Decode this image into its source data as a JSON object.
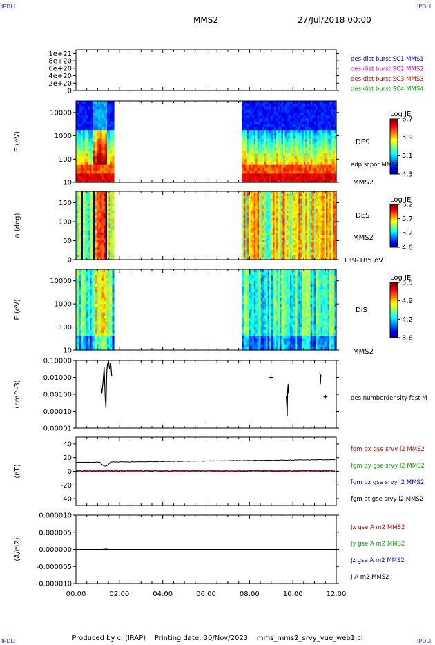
{
  "corner_label": "IPDLI",
  "header": {
    "spacecraft": "MMS2",
    "datetime": "27/Jul/2018 00:00"
  },
  "footer": {
    "produced_by": "Produced by cl (IRAP)",
    "printing_date": "Printing date: 30/Nov/2023",
    "filename": "mms_mms2_srvy_vue_web1.cl"
  },
  "time_axis": {
    "ticks": [
      "00:00",
      "02:00",
      "04:00",
      "06:00",
      "08:00",
      "10:00",
      "12:00"
    ],
    "range_hours": [
      0,
      12
    ]
  },
  "colors": {
    "blue": "#0000cc",
    "magenta": "#cc00cc",
    "red": "#cc0000",
    "green": "#00aa00",
    "black": "#000000"
  },
  "chart_data": [
    {
      "type": "line",
      "ylabel": "",
      "yticks": [
        "0",
        "2e+20",
        "4e+20",
        "6e+20",
        "8e+20",
        "1e+21"
      ],
      "ylim": [
        0,
        1.1e+21
      ],
      "series": [
        {
          "name": "des dist burst SC1 MMS1",
          "color": "#0000cc"
        },
        {
          "name": "des dist burst SC2 MMS2",
          "color": "#cc00cc"
        },
        {
          "name": "des dist burst SC3 MMS3",
          "color": "#cc0000"
        },
        {
          "name": "des dist burst SC4 MMS4",
          "color": "#00aa00"
        }
      ],
      "zero_line": "dashed"
    },
    {
      "type": "heatmap",
      "ylabel": "E (eV)",
      "yscale": "log",
      "yticks": [
        "10",
        "100",
        "1000",
        "10000"
      ],
      "right_labels": [
        "DES",
        "edp scpot MMS2",
        "MMS2"
      ],
      "colorbar": {
        "title": "Log JE",
        "ticks": [
          "6.7",
          "5.9",
          "5.1",
          "4.3"
        ],
        "range": [
          4.3,
          6.7
        ]
      },
      "data_intervals_hours": [
        [
          0,
          1.75
        ],
        [
          7.65,
          12
        ]
      ]
    },
    {
      "type": "heatmap",
      "ylabel": "a (deg)",
      "yticks": [
        "0",
        "50",
        "100",
        "150"
      ],
      "ylim": [
        0,
        180
      ],
      "right_labels": [
        "DES",
        "MMS2",
        "139-185 eV"
      ],
      "colorbar": {
        "title": "Log JE",
        "ticks": [
          "6.2",
          "5.7",
          "5.2",
          "4.6"
        ],
        "range": [
          4.6,
          6.2
        ]
      },
      "data_intervals_hours": [
        [
          0,
          1.75
        ],
        [
          7.65,
          12
        ]
      ]
    },
    {
      "type": "heatmap",
      "ylabel": "E (eV)",
      "yscale": "log",
      "yticks": [
        "10",
        "100",
        "1000",
        "10000"
      ],
      "right_labels": [
        "DIS",
        "MMS2"
      ],
      "colorbar": {
        "title": "Log JE",
        "ticks": [
          "5.5",
          "4.9",
          "4.2",
          "3.6"
        ],
        "range": [
          3.6,
          5.5
        ]
      },
      "data_intervals_hours": [
        [
          0,
          1.75
        ],
        [
          7.65,
          12
        ]
      ]
    },
    {
      "type": "line",
      "ylabel": "(cm^-3)",
      "yscale": "log",
      "yticks": [
        "0.00001",
        "0.00010",
        "0.00100",
        "0.01000",
        "0.10000"
      ],
      "series": [
        {
          "name": "des numberdensity fast M",
          "color": "#000000",
          "segments": [
            [
              [
                1.15,
                0.003
              ],
              [
                1.2,
                0.0012
              ],
              [
                1.25,
                0.006
              ],
              [
                1.3,
                0.04
              ],
              [
                1.35,
                0.0006
              ],
              [
                1.38,
                0.00015
              ],
              [
                1.42,
                0.02
              ],
              [
                1.45,
                0.06
              ],
              [
                1.5,
                0.09
              ],
              [
                1.55,
                0.03
              ],
              [
                1.6,
                0.07
              ],
              [
                1.65,
                0.012
              ]
            ],
            [
              [
                9.7,
                0.0008
              ],
              [
                9.72,
                0.0002
              ],
              [
                9.74,
                5e-05
              ],
              [
                9.76,
                0.0015
              ],
              [
                9.78,
                0.004
              ],
              [
                9.8,
                0.0012
              ]
            ],
            [
              [
                11.25,
                0.02
              ],
              [
                11.27,
                0.004
              ],
              [
                11.29,
                0.015
              ]
            ]
          ],
          "isolated_points": [
            [
              9.0,
              0.01
            ],
            [
              11.5,
              0.0007
            ]
          ]
        }
      ]
    },
    {
      "type": "line",
      "ylabel": "(nT)",
      "yticks": [
        "-40",
        "-20",
        "0",
        "20",
        "40"
      ],
      "ylim": [
        -50,
        50
      ],
      "series": [
        {
          "name": "fgm bx gse srvy l2 MMS2",
          "color": "#cc0000"
        },
        {
          "name": "fgm by gse srvy l2 MMS2",
          "color": "#00aa00"
        },
        {
          "name": "fgm bz gse srvy l2 MMS2",
          "color": "#0000cc"
        },
        {
          "name": "fgm bt gse srvy l2 MMS2",
          "color": "#000000"
        }
      ]
    },
    {
      "type": "line",
      "ylabel": "(A/m2)",
      "yticks": [
        "-0.000010",
        "-0.000005",
        "0.000000",
        "0.000005",
        "0.000010"
      ],
      "ylim": [
        -1e-05,
        1e-05
      ],
      "series": [
        {
          "name": "Jx gse A m2 MMS2",
          "color": "#cc0000"
        },
        {
          "name": "Jy gse A m2 MMS2",
          "color": "#00aa00"
        },
        {
          "name": "Jz gse A m2 MMS2",
          "color": "#0000cc"
        },
        {
          "name": "J A m2 MMS2",
          "color": "#000000"
        }
      ]
    }
  ]
}
